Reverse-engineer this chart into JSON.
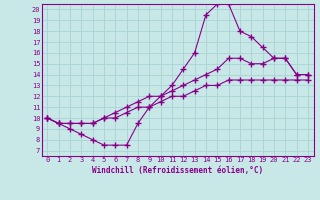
{
  "xlabel": "Windchill (Refroidissement éolien,°C)",
  "bg_color": "#c8e8e8",
  "line_color": "#880088",
  "xlim": [
    -0.5,
    23.5
  ],
  "ylim": [
    6.5,
    20.5
  ],
  "xticks": [
    0,
    1,
    2,
    3,
    4,
    5,
    6,
    7,
    8,
    9,
    10,
    11,
    12,
    13,
    14,
    15,
    16,
    17,
    18,
    19,
    20,
    21,
    22,
    23
  ],
  "yticks": [
    7,
    8,
    9,
    10,
    11,
    12,
    13,
    14,
    15,
    16,
    17,
    18,
    19,
    20
  ],
  "line1_x": [
    0,
    1,
    2,
    3,
    4,
    5,
    6,
    7,
    8,
    9,
    10,
    11,
    12,
    13,
    14,
    15,
    16,
    17,
    18,
    19,
    20,
    21,
    22,
    23
  ],
  "line1_y": [
    10,
    9.5,
    9,
    8.5,
    8,
    7.5,
    7.5,
    7.5,
    9.5,
    11,
    12,
    13,
    14.5,
    16,
    19.5,
    20.5,
    20.5,
    18,
    17.5,
    16.5,
    15.5,
    15.5,
    14,
    14
  ],
  "line2_x": [
    0,
    1,
    2,
    3,
    4,
    5,
    6,
    7,
    8,
    9,
    10,
    11,
    12,
    13,
    14,
    15,
    16,
    17,
    18,
    19,
    20,
    21,
    22,
    23
  ],
  "line2_y": [
    10,
    9.5,
    9.5,
    9.5,
    9.5,
    10,
    10.5,
    11,
    11.5,
    12,
    12,
    12.5,
    13,
    13.5,
    14,
    14.5,
    15.5,
    15.5,
    15,
    15,
    15.5,
    15.5,
    14,
    14
  ],
  "line3_x": [
    0,
    1,
    2,
    3,
    4,
    5,
    6,
    7,
    8,
    9,
    10,
    11,
    12,
    13,
    14,
    15,
    16,
    17,
    18,
    19,
    20,
    21,
    22,
    23
  ],
  "line3_y": [
    10,
    9.5,
    9.5,
    9.5,
    9.5,
    10,
    10,
    10.5,
    11,
    11,
    11.5,
    12,
    12,
    12.5,
    13,
    13,
    13.5,
    13.5,
    13.5,
    13.5,
    13.5,
    13.5,
    13.5,
    13.5
  ],
  "grid_color": "#a8d4d4",
  "marker": "+"
}
